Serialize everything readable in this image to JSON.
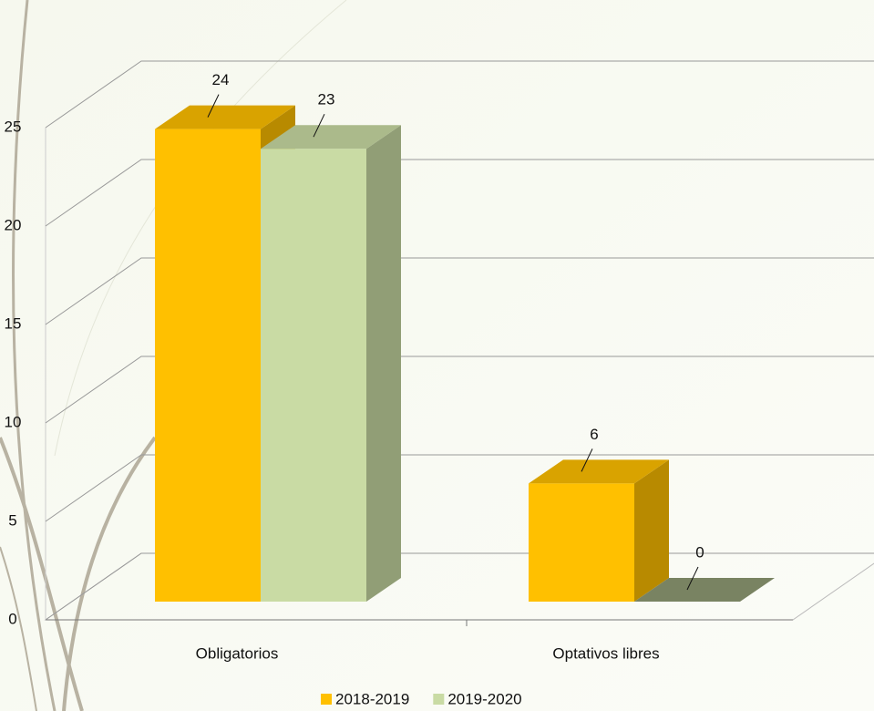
{
  "chart_data": {
    "type": "bar3d",
    "categories": [
      "Obligatorios",
      "Optativos libres"
    ],
    "series": [
      {
        "name": "2018-2019",
        "color": "#ffc000",
        "values": [
          24,
          6
        ]
      },
      {
        "name": "2019-2020",
        "color": "#c9dba4",
        "values": [
          23,
          0
        ]
      }
    ],
    "ylim": [
      0,
      25
    ],
    "yticks": [
      0,
      5,
      10,
      15,
      20,
      25
    ],
    "grid": true,
    "legend": "bottom"
  }
}
